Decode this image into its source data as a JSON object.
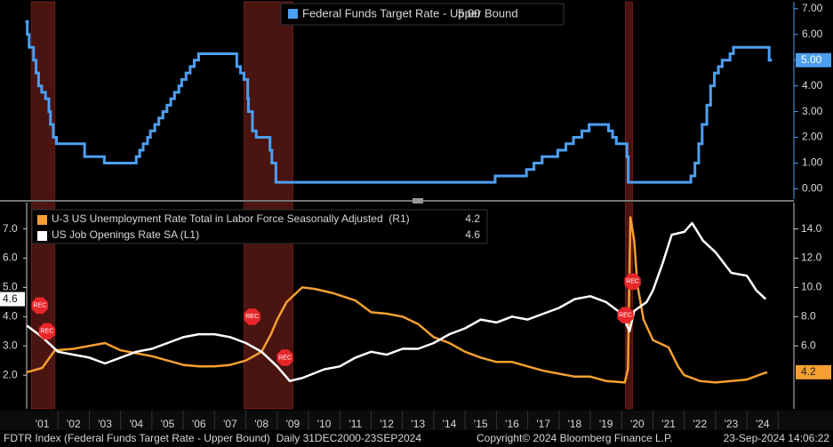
{
  "chart_data": [
    {
      "type": "step-line",
      "xlim": [
        2001,
        2025.5
      ],
      "ylim": [
        -0.4,
        7.27
      ],
      "yticks": [
        {
          "value": 0,
          "label": "0.00"
        },
        {
          "value": 1,
          "label": "1.00"
        },
        {
          "value": 2,
          "label": "2.00"
        },
        {
          "value": 3,
          "label": "3.00"
        },
        {
          "value": 4,
          "label": "4.00"
        },
        {
          "value": 5,
          "label": "5.00"
        },
        {
          "value": 6,
          "label": "6.00"
        },
        {
          "value": 7,
          "label": "7.00"
        }
      ],
      "recessions": [
        [
          2001.15,
          2001.9
        ],
        [
          2007.94,
          2009.5
        ],
        [
          2020.12,
          2020.35
        ]
      ],
      "series": [
        {
          "name": "Federal Funds Target Rate - Upper Bound",
          "last_label": "5.00",
          "color": "#4d9ff2",
          "x": [
            2001.0,
            2001.02,
            2001.08,
            2001.22,
            2001.3,
            2001.38,
            2001.48,
            2001.6,
            2001.71,
            2001.76,
            2001.85,
            2001.95,
            2002.85,
            2003.48,
            2004.5,
            2004.61,
            2004.72,
            2004.86,
            2004.95,
            2005.09,
            2005.22,
            2005.35,
            2005.48,
            2005.6,
            2005.72,
            2005.86,
            2005.95,
            2006.09,
            2006.22,
            2006.35,
            2006.49,
            2007.71,
            2007.83,
            2007.94,
            2008.06,
            2008.08,
            2008.21,
            2008.33,
            2008.77,
            2008.83,
            2008.96,
            2015.96,
            2016.96,
            2017.2,
            2017.46,
            2017.96,
            2018.22,
            2018.46,
            2018.73,
            2018.96,
            2019.58,
            2019.71,
            2019.83,
            2020.17,
            2020.21,
            2022.21,
            2022.34,
            2022.46,
            2022.57,
            2022.72,
            2022.84,
            2022.96,
            2023.09,
            2023.21,
            2023.46,
            2023.57,
            2024.71,
            2024.73
          ],
          "values": [
            6.5,
            6.0,
            5.5,
            5.0,
            4.5,
            4.0,
            3.75,
            3.5,
            3.0,
            2.5,
            2.0,
            1.75,
            1.25,
            1.0,
            1.25,
            1.5,
            1.75,
            2.0,
            2.25,
            2.5,
            2.75,
            3.0,
            3.25,
            3.5,
            3.75,
            4.0,
            4.25,
            4.5,
            4.75,
            5.0,
            5.25,
            4.75,
            4.5,
            4.25,
            3.5,
            3.0,
            2.25,
            2.0,
            1.5,
            1.0,
            0.25,
            0.5,
            0.75,
            1.0,
            1.25,
            1.5,
            1.75,
            2.0,
            2.25,
            2.5,
            2.25,
            2.0,
            1.75,
            1.25,
            0.25,
            0.5,
            1.0,
            1.75,
            2.5,
            3.25,
            4.0,
            4.5,
            4.75,
            5.0,
            5.25,
            5.5,
            5.0,
            5.0
          ]
        }
      ]
    },
    {
      "type": "line",
      "xlim": [
        2001,
        2025.5
      ],
      "ylim": [
        0.85,
        7.9
      ],
      "y2lim": [
        1.7,
        15.8
      ],
      "yticks": [
        {
          "value": 2,
          "label": "2.0"
        },
        {
          "value": 3,
          "label": "3.0"
        },
        {
          "value": 4,
          "label": "4.0"
        },
        {
          "value": 5,
          "label": "5.0"
        },
        {
          "value": 6,
          "label": "6.0"
        },
        {
          "value": 7,
          "label": "7.0"
        }
      ],
      "y2ticks": [
        {
          "value": 6,
          "label": "6.0"
        },
        {
          "value": 8,
          "label": "8.0"
        },
        {
          "value": 10,
          "label": "10.0"
        },
        {
          "value": 12,
          "label": "12.0"
        },
        {
          "value": 14,
          "label": "14.0"
        }
      ],
      "xticks": [
        {
          "value": 2001.5,
          "label": "'01"
        },
        {
          "value": 2002.5,
          "label": "'02"
        },
        {
          "value": 2003.5,
          "label": "'03"
        },
        {
          "value": 2004.5,
          "label": "'04"
        },
        {
          "value": 2005.5,
          "label": "'05"
        },
        {
          "value": 2006.5,
          "label": "'06"
        },
        {
          "value": 2007.5,
          "label": "'07"
        },
        {
          "value": 2008.5,
          "label": "'08"
        },
        {
          "value": 2009.5,
          "label": "'09"
        },
        {
          "value": 2010.5,
          "label": "'10"
        },
        {
          "value": 2011.5,
          "label": "'11"
        },
        {
          "value": 2012.5,
          "label": "'12"
        },
        {
          "value": 2013.5,
          "label": "'13"
        },
        {
          "value": 2014.5,
          "label": "'14"
        },
        {
          "value": 2015.5,
          "label": "'15"
        },
        {
          "value": 2016.5,
          "label": "'16"
        },
        {
          "value": 2017.5,
          "label": "'17"
        },
        {
          "value": 2018.5,
          "label": "'18"
        },
        {
          "value": 2019.5,
          "label": "'19"
        },
        {
          "value": 2020.5,
          "label": "'20"
        },
        {
          "value": 2021.5,
          "label": "'21"
        },
        {
          "value": 2022.5,
          "label": "'22"
        },
        {
          "value": 2023.5,
          "label": "'23"
        },
        {
          "value": 2024.5,
          "label": "'24"
        }
      ],
      "annotations": [
        {
          "text": "REC",
          "x": 2001.42,
          "y": 4.38
        },
        {
          "text": "REC",
          "x": 2001.65,
          "y": 3.5
        },
        {
          "text": "REC",
          "x": 2008.2,
          "y": 4.0
        },
        {
          "text": "REC",
          "x": 2009.25,
          "y": 2.6
        },
        {
          "text": "REC",
          "x": 2020.35,
          "y": 5.2
        },
        {
          "text": "REC",
          "x": 2020.12,
          "y": 4.05
        }
      ],
      "series": [
        {
          "name": "U-3 US Unemployment Rate Total in Labor Force Seasonally Adjusted  (R1)",
          "last_label": "4.2",
          "color": "#f5a030",
          "axis": "y2",
          "x": [
            2001.0,
            2001.5,
            2001.9,
            2002.5,
            2003.5,
            2004.0,
            2004.5,
            2005.0,
            2005.5,
            2006.0,
            2006.5,
            2007.0,
            2007.5,
            2008.0,
            2008.5,
            2008.8,
            2009.0,
            2009.3,
            2009.8,
            2010.2,
            2010.8,
            2011.5,
            2012.0,
            2012.5,
            2013.0,
            2013.5,
            2014.0,
            2014.5,
            2015.0,
            2015.5,
            2016.0,
            2016.5,
            2017.0,
            2017.5,
            2018.0,
            2018.5,
            2019.0,
            2019.5,
            2020.1,
            2020.2,
            2020.28,
            2020.4,
            2020.5,
            2020.7,
            2021.0,
            2021.5,
            2021.8,
            2022.0,
            2022.5,
            2023.0,
            2023.5,
            2024.0,
            2024.5,
            2024.65
          ],
          "values": [
            4.2,
            4.5,
            5.7,
            5.8,
            6.2,
            5.7,
            5.5,
            5.3,
            5.0,
            4.7,
            4.6,
            4.6,
            4.7,
            5.0,
            5.6,
            6.8,
            7.8,
            9.0,
            10.0,
            9.9,
            9.6,
            9.1,
            8.3,
            8.2,
            8.0,
            7.5,
            6.6,
            6.2,
            5.6,
            5.2,
            4.9,
            4.9,
            4.6,
            4.3,
            4.1,
            3.9,
            3.9,
            3.6,
            3.5,
            4.4,
            14.8,
            13.2,
            10.2,
            7.8,
            6.4,
            5.9,
            4.6,
            4.0,
            3.6,
            3.5,
            3.6,
            3.7,
            4.1,
            4.2
          ]
        },
        {
          "name": "US Job Openings Rate SA (L1)",
          "last_label": "4.6",
          "color": "#ffffff",
          "axis": "y",
          "x": [
            2001.0,
            2001.5,
            2002.0,
            2002.5,
            2003.0,
            2003.5,
            2004.0,
            2004.5,
            2005.0,
            2005.5,
            2006.0,
            2006.5,
            2007.0,
            2007.5,
            2008.0,
            2008.5,
            2009.0,
            2009.4,
            2009.8,
            2010.5,
            2011.0,
            2011.5,
            2012.0,
            2012.5,
            2013.0,
            2013.5,
            2014.0,
            2014.5,
            2015.0,
            2015.5,
            2016.0,
            2016.5,
            2017.0,
            2017.5,
            2018.0,
            2018.5,
            2019.0,
            2019.5,
            2020.0,
            2020.25,
            2020.4,
            2020.8,
            2021.0,
            2021.3,
            2021.6,
            2022.0,
            2022.25,
            2022.6,
            2023.0,
            2023.5,
            2024.0,
            2024.3,
            2024.6
          ],
          "values": [
            3.7,
            3.3,
            2.8,
            2.7,
            2.6,
            2.4,
            2.6,
            2.8,
            2.9,
            3.1,
            3.3,
            3.4,
            3.4,
            3.3,
            3.1,
            2.8,
            2.3,
            1.8,
            1.9,
            2.2,
            2.3,
            2.6,
            2.8,
            2.7,
            2.9,
            2.9,
            3.1,
            3.4,
            3.6,
            3.9,
            3.8,
            4.0,
            3.9,
            4.1,
            4.3,
            4.6,
            4.7,
            4.5,
            4.1,
            3.5,
            4.2,
            4.5,
            4.9,
            5.8,
            6.8,
            6.9,
            7.2,
            6.6,
            6.2,
            5.5,
            5.4,
            4.9,
            4.6
          ]
        }
      ]
    }
  ],
  "footer": {
    "left": "FDTR Index (Federal Funds Target Rate - Upper Bound)  Daily 31DEC2000-23SEP2024",
    "center": "Copyright© 2024 Bloomberg Finance L.P.",
    "right": "23-Sep-2024 14:06:22"
  }
}
